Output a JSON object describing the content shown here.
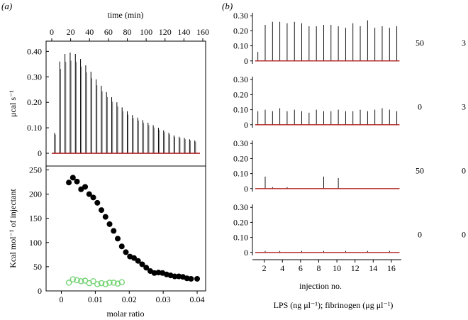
{
  "panel_labels": {
    "a": "(a)",
    "b": "(b)"
  },
  "colors": {
    "baseline": "#b22222",
    "peaks": "#000000",
    "hollow": "#6fd36f",
    "axis": "#000000"
  },
  "chart_data": [
    {
      "id": "a-top",
      "type": "line",
      "title": "",
      "xlabel": "time (min)",
      "ylabel": "μcal s⁻¹",
      "xlim": [
        -6,
        163
      ],
      "ylim": [
        -0.05,
        0.44
      ],
      "xticks": [
        "0",
        "20",
        "40",
        "60",
        "80",
        "100",
        "120",
        "140",
        "160"
      ],
      "yticks": [
        "0",
        "0.10",
        "0.20",
        "0.30",
        "0.40"
      ],
      "xtick_values": [
        0,
        20,
        40,
        60,
        80,
        100,
        120,
        140,
        160
      ],
      "ytick_values": [
        0,
        0.1,
        0.2,
        0.3,
        0.4
      ],
      "peak_times": [
        3,
        8.5,
        14,
        19.5,
        25,
        30.5,
        36,
        41.5,
        47,
        52.5,
        58,
        63.5,
        69,
        74.5,
        80,
        85.5,
        91,
        96.5,
        102,
        107.5,
        113,
        118.5,
        124,
        129.5,
        135,
        140.5,
        146,
        151.5
      ],
      "peak_heights": [
        0.08,
        0.36,
        0.39,
        0.395,
        0.39,
        0.37,
        0.345,
        0.32,
        0.29,
        0.265,
        0.24,
        0.22,
        0.2,
        0.18,
        0.165,
        0.15,
        0.14,
        0.13,
        0.12,
        0.11,
        0.1,
        0.09,
        0.08,
        0.07,
        0.065,
        0.06,
        0.055,
        0.05
      ],
      "baseline": 0
    },
    {
      "id": "a-bottom",
      "type": "scatter",
      "xlabel": "molar ratio",
      "ylabel": "Kcal mol⁻¹ of injectant",
      "xlim": [
        -0.0045,
        0.0425
      ],
      "ylim": [
        0,
        258
      ],
      "xticks": [
        "0",
        "0.01",
        "0.02",
        "0.03",
        "0.04"
      ],
      "yticks": [
        "0",
        "50",
        "100",
        "150",
        "200",
        "250"
      ],
      "xtick_values": [
        0,
        0.01,
        0.02,
        0.03,
        0.04
      ],
      "ytick_values": [
        0,
        50,
        100,
        150,
        200,
        250
      ],
      "series": [
        {
          "name": "filled",
          "style": "filled",
          "x": [
            0.0022,
            0.0034,
            0.0046,
            0.0058,
            0.007,
            0.0082,
            0.0094,
            0.0106,
            0.0118,
            0.013,
            0.0142,
            0.0154,
            0.0166,
            0.0178,
            0.019,
            0.0202,
            0.0214,
            0.0226,
            0.0238,
            0.025,
            0.0262,
            0.0274,
            0.0286,
            0.0298,
            0.031,
            0.0322,
            0.0334,
            0.0346,
            0.0358,
            0.037,
            0.0382,
            0.04
          ],
          "y": [
            224,
            234,
            226,
            210,
            215,
            200,
            193,
            182,
            167,
            153,
            138,
            124,
            108,
            92,
            80,
            71,
            68,
            62,
            55,
            48,
            41,
            37,
            38,
            37,
            34,
            32,
            30,
            30,
            29,
            26,
            25,
            25
          ]
        },
        {
          "name": "hollow",
          "style": "open",
          "x": [
            0.0022,
            0.0034,
            0.0046,
            0.0058,
            0.007,
            0.0082,
            0.0094,
            0.0106,
            0.0118,
            0.013,
            0.0142,
            0.0154,
            0.0166,
            0.0178
          ],
          "y": [
            17,
            24,
            22,
            20,
            21,
            16,
            20,
            14,
            16,
            14,
            17,
            17,
            15,
            18
          ]
        }
      ]
    },
    {
      "id": "b-panels",
      "type": "line",
      "xlabel": "injection no.",
      "caption": "LPS (ng μl⁻¹); fibrinogen (μg μl⁻¹)",
      "xlim": [
        0.7,
        17.1
      ],
      "ylim": [
        -0.02,
        0.32
      ],
      "xticks": [
        "2",
        "4",
        "6",
        "8",
        "10",
        "12",
        "14",
        "16"
      ],
      "xtick_values": [
        2,
        4,
        6,
        8,
        10,
        12,
        14,
        16
      ],
      "yticks": [
        "0",
        "0.10",
        "0.20",
        "0.30"
      ],
      "ytick_values": [
        0,
        0.1,
        0.2,
        0.3
      ],
      "column_headers": [
        "",
        ""
      ],
      "panels": [
        {
          "lps": "50",
          "fibrinogen": "3",
          "peaks": [
            0.06,
            0.24,
            0.26,
            0.26,
            0.25,
            0.26,
            0.25,
            0.23,
            0.23,
            0.24,
            0.24,
            0.23,
            0.22,
            0.25,
            0.23,
            0.27,
            0.22,
            0.23,
            0.22,
            0.23
          ]
        },
        {
          "lps": "0",
          "fibrinogen": "3",
          "peaks": [
            0.09,
            0.1,
            0.09,
            0.11,
            0.09,
            0.1,
            0.09,
            0.08,
            0.1,
            0.09,
            0.09,
            0.1,
            0.09,
            0.09,
            0.1,
            0.09,
            0.1,
            0.11,
            0.1,
            0.09
          ]
        },
        {
          "lps": "50",
          "fibrinogen": "0",
          "peaks": [
            0.0,
            0.08,
            0.01,
            0.0,
            0.01,
            0.0,
            0.0,
            0.0,
            0.0,
            0.08,
            0.0,
            0.07,
            0.0,
            0.0,
            0.0,
            0.0,
            0.0,
            0.0,
            0.0,
            0.0
          ]
        },
        {
          "lps": "0",
          "fibrinogen": "0",
          "peaks": [
            0.0,
            0.01,
            0.0,
            0.01,
            0.0,
            0.0,
            0.01,
            0.0,
            0.0,
            0.01,
            0.0,
            0.0,
            0.01,
            0.0,
            0.0,
            0.01,
            0.0,
            0.0,
            0.01,
            0.0
          ]
        }
      ]
    }
  ]
}
